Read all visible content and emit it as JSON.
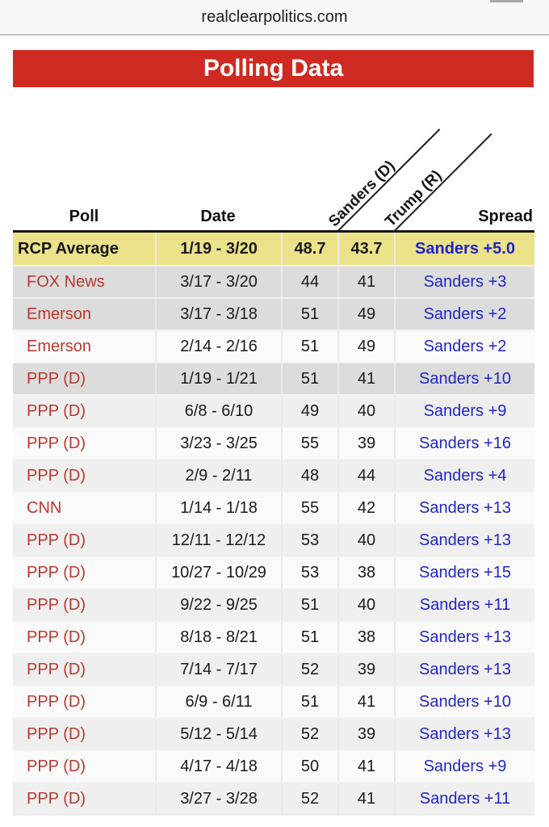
{
  "browser": {
    "url": "realclearpolitics.com"
  },
  "banner": {
    "title": "Polling Data"
  },
  "colors": {
    "banner_red": "#cf2a21",
    "poll_link_red": "#bf362f",
    "spread_blue": "#2126c9",
    "average_row_yellow": "#ece28a",
    "highlight_row_gray": "#dcdcdc",
    "stripe_light": "#efefef",
    "stripe_white": "#fafafa"
  },
  "table": {
    "columns": {
      "poll": "Poll",
      "date": "Date",
      "sanders": "Sanders (D)",
      "trump": "Trump (R)",
      "spread": "Spread"
    },
    "rows": [
      {
        "poll": "RCP Average",
        "date": "1/19 - 3/20",
        "sanders": "48.7",
        "trump": "43.7",
        "spread": "Sanders +5.0",
        "style": "average"
      },
      {
        "poll": "FOX News",
        "date": "3/17 - 3/20",
        "sanders": "44",
        "trump": "41",
        "spread": "Sanders +3",
        "style": "highlight"
      },
      {
        "poll": "Emerson",
        "date": "3/17 - 3/18",
        "sanders": "51",
        "trump": "49",
        "spread": "Sanders +2",
        "style": "highlight"
      },
      {
        "poll": "Emerson",
        "date": "2/14 - 2/16",
        "sanders": "51",
        "trump": "49",
        "spread": "Sanders +2",
        "style": "white"
      },
      {
        "poll": "PPP (D)",
        "date": "1/19 - 1/21",
        "sanders": "51",
        "trump": "41",
        "spread": "Sanders +10",
        "style": "highlight"
      },
      {
        "poll": "PPP (D)",
        "date": "6/8 - 6/10",
        "sanders": "49",
        "trump": "40",
        "spread": "Sanders +9",
        "style": "light"
      },
      {
        "poll": "PPP (D)",
        "date": "3/23 - 3/25",
        "sanders": "55",
        "trump": "39",
        "spread": "Sanders +16",
        "style": "white"
      },
      {
        "poll": "PPP (D)",
        "date": "2/9 - 2/11",
        "sanders": "48",
        "trump": "44",
        "spread": "Sanders +4",
        "style": "light"
      },
      {
        "poll": "CNN",
        "date": "1/14 - 1/18",
        "sanders": "55",
        "trump": "42",
        "spread": "Sanders +13",
        "style": "white"
      },
      {
        "poll": "PPP (D)",
        "date": "12/11 - 12/12",
        "sanders": "53",
        "trump": "40",
        "spread": "Sanders +13",
        "style": "light"
      },
      {
        "poll": "PPP (D)",
        "date": "10/27 - 10/29",
        "sanders": "53",
        "trump": "38",
        "spread": "Sanders +15",
        "style": "white"
      },
      {
        "poll": "PPP (D)",
        "date": "9/22 - 9/25",
        "sanders": "51",
        "trump": "40",
        "spread": "Sanders +11",
        "style": "light"
      },
      {
        "poll": "PPP (D)",
        "date": "8/18 - 8/21",
        "sanders": "51",
        "trump": "38",
        "spread": "Sanders +13",
        "style": "white"
      },
      {
        "poll": "PPP (D)",
        "date": "7/14 - 7/17",
        "sanders": "52",
        "trump": "39",
        "spread": "Sanders +13",
        "style": "light"
      },
      {
        "poll": "PPP (D)",
        "date": "6/9 - 6/11",
        "sanders": "51",
        "trump": "41",
        "spread": "Sanders +10",
        "style": "white"
      },
      {
        "poll": "PPP (D)",
        "date": "5/12 - 5/14",
        "sanders": "52",
        "trump": "39",
        "spread": "Sanders +13",
        "style": "light"
      },
      {
        "poll": "PPP (D)",
        "date": "4/17 - 4/18",
        "sanders": "50",
        "trump": "41",
        "spread": "Sanders +9",
        "style": "white"
      },
      {
        "poll": "PPP (D)",
        "date": "3/27 - 3/28",
        "sanders": "52",
        "trump": "41",
        "spread": "Sanders +11",
        "style": "light"
      }
    ]
  }
}
